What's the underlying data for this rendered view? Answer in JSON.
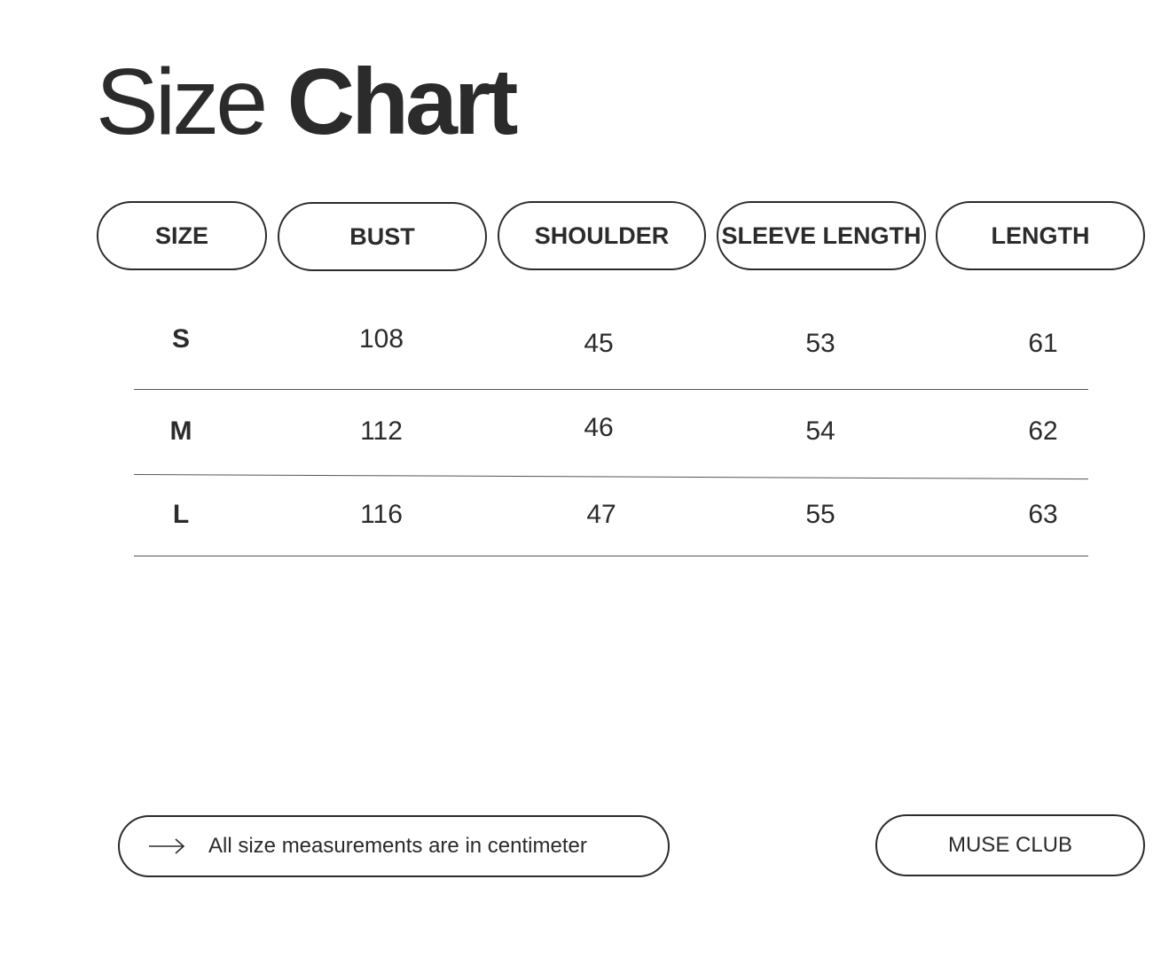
{
  "title": {
    "light": "Size",
    "bold": "Chart"
  },
  "table": {
    "headers": [
      "SIZE",
      "BUST",
      "SHOULDER",
      "SLEEVE LENGTH",
      "LENGTH"
    ],
    "rows": [
      [
        "S",
        "108",
        "45",
        "53",
        "61"
      ],
      [
        "M",
        "112",
        "46",
        "54",
        "62"
      ],
      [
        "L",
        "116",
        "47",
        "55",
        "63"
      ]
    ]
  },
  "footer": {
    "note_icon": "arrow-right-icon",
    "note": "All size measurements are in centimeter",
    "brand": "MUSE CLUB"
  }
}
